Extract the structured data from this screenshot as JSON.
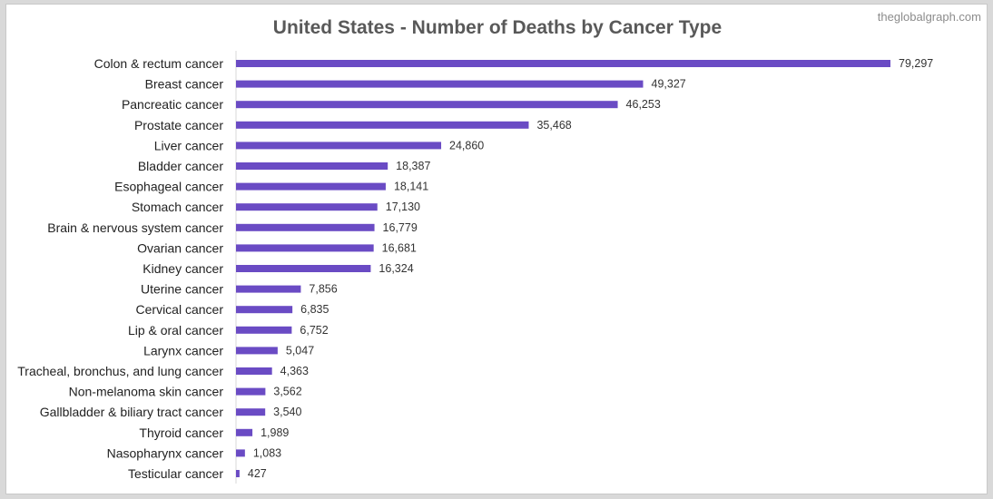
{
  "watermark": "theglobalgraph.com",
  "chart_data": {
    "type": "bar",
    "orientation": "horizontal",
    "title": "United States - Number of Deaths by Cancer Type",
    "xlabel": "",
    "ylabel": "",
    "grid": false,
    "legend": "none",
    "bar_color": "#6a4bc4",
    "xlim": [
      0,
      80000
    ],
    "categories": [
      "Colon & rectum cancer",
      "Breast cancer",
      "Pancreatic cancer",
      "Prostate cancer",
      "Liver cancer",
      "Bladder cancer",
      "Esophageal cancer",
      "Stomach cancer",
      "Brain & nervous system cancer",
      "Ovarian cancer",
      "Kidney cancer",
      "Uterine cancer",
      "Cervical cancer",
      "Lip & oral cancer",
      "Larynx cancer",
      "Tracheal, bronchus, and lung cancer",
      "Non-melanoma skin cancer",
      "Gallbladder & biliary tract cancer",
      "Thyroid cancer",
      "Nasopharynx cancer",
      "Testicular cancer"
    ],
    "values": [
      79297,
      49327,
      46253,
      35468,
      24860,
      18387,
      18141,
      17130,
      16779,
      16681,
      16324,
      7856,
      6835,
      6752,
      5047,
      4363,
      3562,
      3540,
      1989,
      1083,
      427
    ],
    "value_labels": [
      "79,297",
      "49,327",
      "46,253",
      "35,468",
      "24,860",
      "18,387",
      "18,141",
      "17,130",
      "16,779",
      "16,681",
      "16,324",
      "7,856",
      "6,835",
      "6,752",
      "5,047",
      "4,363",
      "3,562",
      "3,540",
      "1,989",
      "1,083",
      "427"
    ]
  }
}
